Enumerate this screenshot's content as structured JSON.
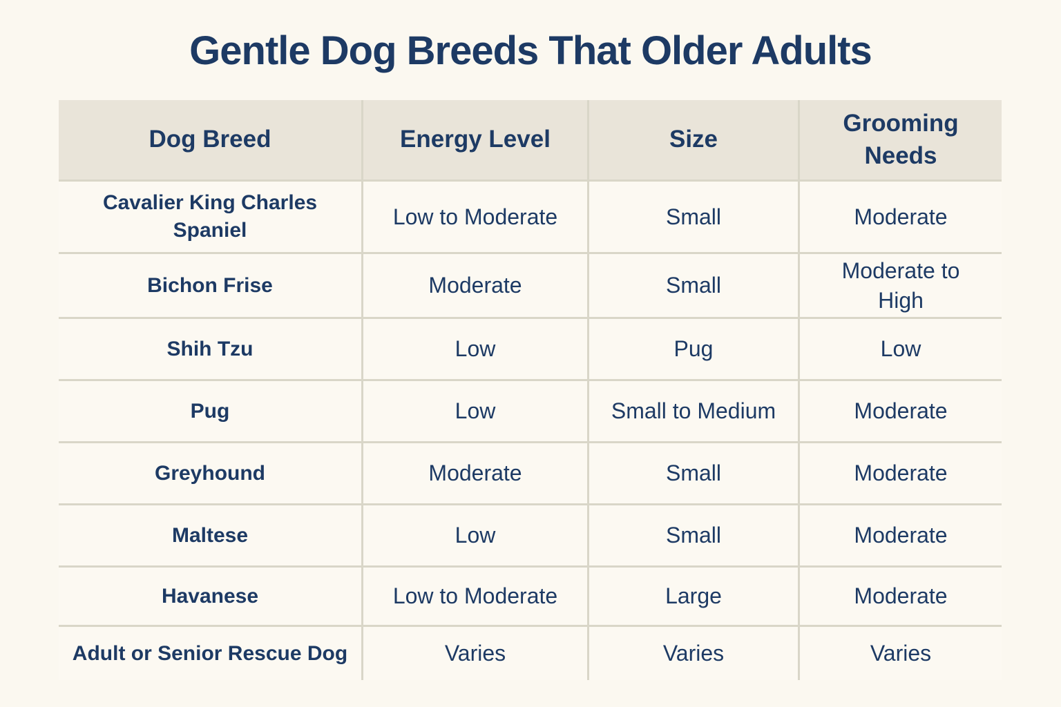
{
  "title": "Gentle Dog Breeds That Older Adults",
  "colors": {
    "page_bg": "#fbf8f0",
    "cell_bg": "#fcf9f2",
    "header_bg": "#e9e4d9",
    "divider": "#d9d6c8",
    "text": "#1d3a64"
  },
  "table": {
    "columns": [
      "Dog Breed",
      "Energy Level",
      "Size",
      "Grooming Needs"
    ],
    "rows": [
      {
        "breed": "Cavalier King Charles Spaniel",
        "energy": "Low to Moderate",
        "size": "Small",
        "grooming": "Moderate"
      },
      {
        "breed": "Bichon Frise",
        "energy": "Moderate",
        "size": "Small",
        "grooming": "Moderate to High"
      },
      {
        "breed": "Shih Tzu",
        "energy": "Low",
        "size": "Pug",
        "grooming": "Low"
      },
      {
        "breed": "Pug",
        "energy": "Low",
        "size": "Small to Medium",
        "grooming": "Moderate"
      },
      {
        "breed": "Greyhound",
        "energy": "Moderate",
        "size": "Small",
        "grooming": "Moderate"
      },
      {
        "breed": "Maltese",
        "energy": "Low",
        "size": "Small",
        "grooming": "Moderate"
      },
      {
        "breed": "Havanese",
        "energy": "Low to Moderate",
        "size": "Large",
        "grooming": "Moderate"
      },
      {
        "breed": "Adult or Senior Rescue Dog",
        "energy": "Varies",
        "size": "Varies",
        "grooming": "Varies"
      }
    ]
  }
}
